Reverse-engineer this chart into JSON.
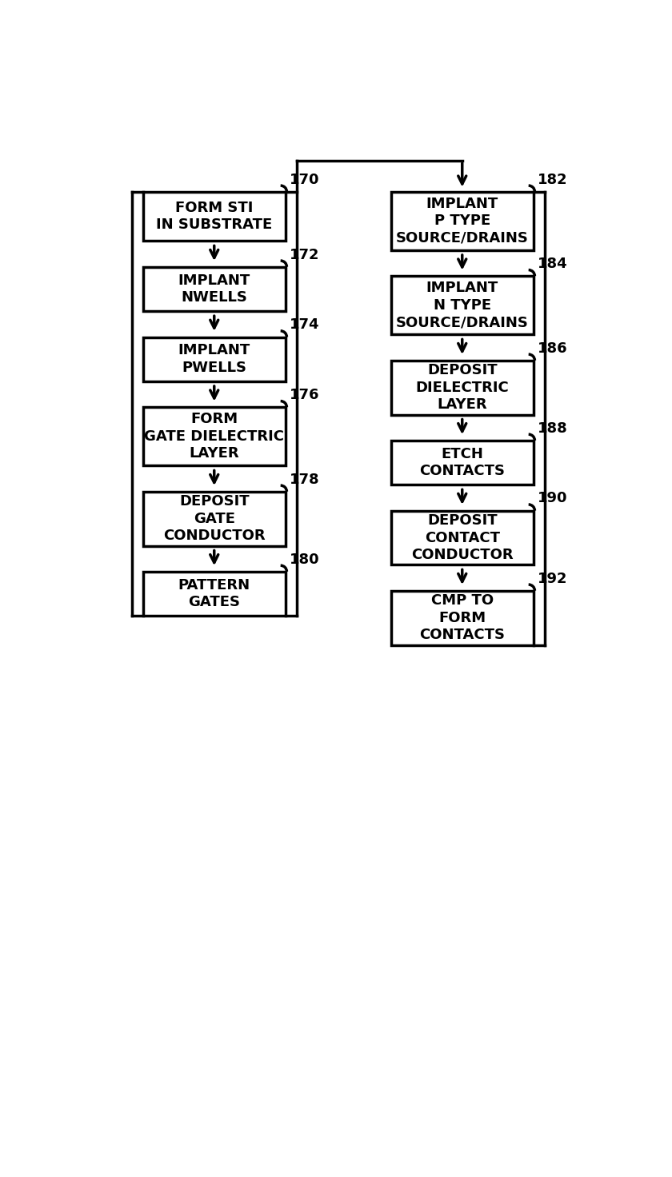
{
  "background_color": "#ffffff",
  "left_column": {
    "boxes": [
      {
        "label": "FORM STI\nIN SUBSTRATE",
        "ref": "170"
      },
      {
        "label": "IMPLANT\nNWELLS",
        "ref": "172"
      },
      {
        "label": "IMPLANT\nPWELLS",
        "ref": "174"
      },
      {
        "label": "FORM\nGATE DIELECTRIC\nLAYER",
        "ref": "176"
      },
      {
        "label": "DEPOSIT\nGATE\nCONDUCTOR",
        "ref": "178"
      },
      {
        "label": "PATTERN\nGATES",
        "ref": "180"
      }
    ]
  },
  "right_column": {
    "boxes": [
      {
        "label": "IMPLANT\nP TYPE\nSOURCE/DRAINS",
        "ref": "182"
      },
      {
        "label": "IMPLANT\nN TYPE\nSOURCE/DRAINS",
        "ref": "184"
      },
      {
        "label": "DEPOSIT\nDIELECTRIC\nLAYER",
        "ref": "186"
      },
      {
        "label": "ETCH\nCONTACTS",
        "ref": "188"
      },
      {
        "label": "DEPOSIT\nCONTACT\nCONDUCTOR",
        "ref": "190"
      },
      {
        "label": "CMP TO\nFORM\nCONTACTS",
        "ref": "192"
      }
    ]
  }
}
